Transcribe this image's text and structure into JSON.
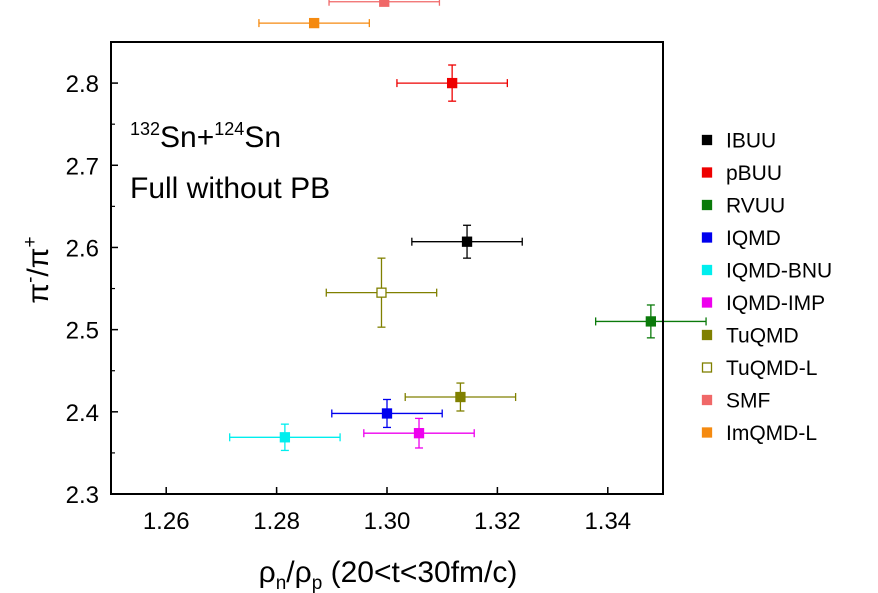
{
  "chart_data": {
    "type": "scatter",
    "xlabel": "ρn/ρp (20<t<30fm/c)",
    "xlabel_parts": {
      "rho": "ρ",
      "sub_n": "n",
      "slash": "/",
      "sub_p": "p",
      "rest": " (20<t<30fm/c)"
    },
    "ylabel": "π-/π+",
    "ylabel_parts": {
      "pi1": "π",
      "sup1": "-",
      "slash": "/",
      "pi2": "π",
      "sup2": "+"
    },
    "xlim": [
      1.25,
      1.35
    ],
    "ylim": [
      2.3,
      2.85
    ],
    "xticks": [
      1.26,
      1.28,
      1.3,
      1.32,
      1.34
    ],
    "xtick_labels": [
      "1.26",
      "1.28",
      "1.30",
      "1.32",
      "1.34"
    ],
    "yticks": [
      2.3,
      2.4,
      2.5,
      2.6,
      2.7,
      2.8
    ],
    "ytick_labels": [
      "2.3",
      "2.4",
      "2.5",
      "2.6",
      "2.7",
      "2.8"
    ],
    "annotation": {
      "line1": {
        "sup_a": "132",
        "text_a": "Sn+",
        "sup_b": "124",
        "text_b": "Sn"
      },
      "line2": "Full without PB"
    },
    "legend_position": "right",
    "series": [
      {
        "name": "IBUU",
        "color": "#000000",
        "filled": true,
        "x": 1.3145,
        "y": 2.607,
        "xerr": 0.01,
        "yerr": 0.02
      },
      {
        "name": "pBUU",
        "color": "#ee0000",
        "filled": true,
        "x": 1.3118,
        "y": 2.8,
        "xerr": 0.01,
        "yerr": 0.022
      },
      {
        "name": "RVUU",
        "color": "#0a7a0a",
        "filled": true,
        "x": 1.3478,
        "y": 2.51,
        "xerr": 0.01,
        "yerr": 0.02
      },
      {
        "name": "IQMD",
        "color": "#0000ee",
        "filled": true,
        "x": 1.3,
        "y": 2.398,
        "xerr": 0.01,
        "yerr": 0.017
      },
      {
        "name": "IQMD-BNU",
        "color": "#00eeee",
        "filled": true,
        "x": 1.2815,
        "y": 2.369,
        "xerr": 0.01,
        "yerr": 0.016
      },
      {
        "name": "IQMD-IMP",
        "color": "#ee00ee",
        "filled": true,
        "x": 1.3058,
        "y": 2.374,
        "xerr": 0.01,
        "yerr": 0.018
      },
      {
        "name": "TuQMD",
        "color": "#808000",
        "filled": true,
        "x": 1.3133,
        "y": 2.418,
        "xerr": 0.01,
        "yerr": 0.017
      },
      {
        "name": "TuQMD-L",
        "color": "#808000",
        "filled": false,
        "x": 1.299,
        "y": 2.545,
        "xerr": 0.01,
        "yerr": 0.042
      },
      {
        "name": "SMF",
        "color": "#f06868",
        "filled": true,
        "x": 1.2995,
        "y": 2.899,
        "xerr": 0.01,
        "yerr": 0.0
      },
      {
        "name": "ImQMD-L",
        "color": "#f58a10",
        "filled": true,
        "x": 1.2868,
        "y": 2.873,
        "xerr": 0.01,
        "yerr": 0.0
      }
    ]
  }
}
